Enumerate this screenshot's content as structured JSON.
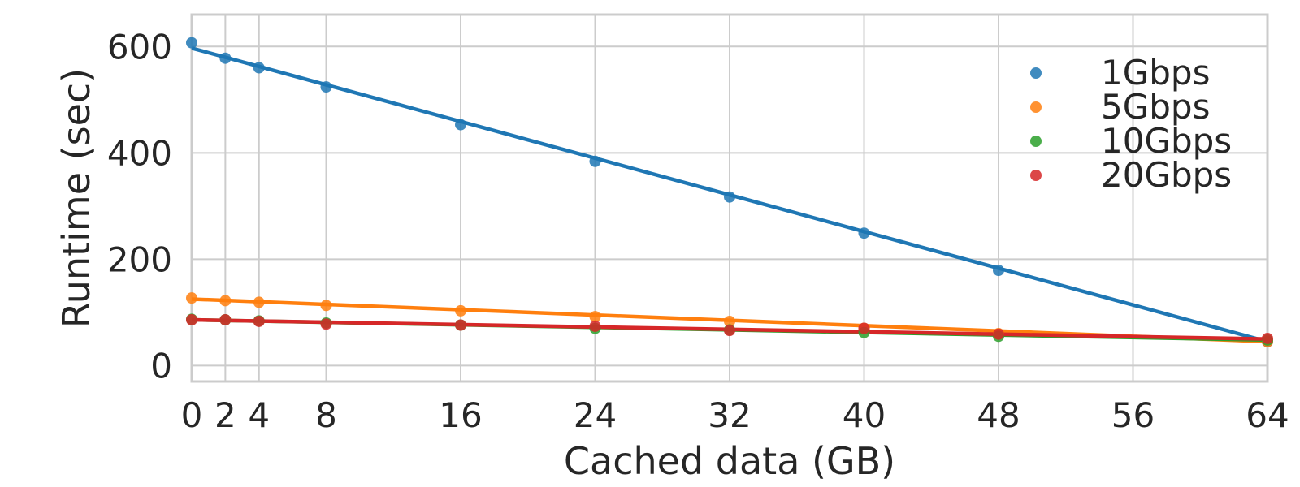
{
  "chart_data": {
    "type": "scatter",
    "xlabel": "Cached data (GB)",
    "ylabel": "Runtime (sec)",
    "xlim": [
      0,
      64
    ],
    "ylim": [
      -30,
      660
    ],
    "x_ticks": [
      0,
      2,
      4,
      8,
      16,
      24,
      32,
      40,
      48,
      56,
      64
    ],
    "y_ticks": [
      0,
      200,
      400,
      600
    ],
    "grid": true,
    "legend_position": "top-right",
    "x": [
      0,
      2,
      4,
      8,
      16,
      24,
      32,
      40,
      48,
      64
    ],
    "series": [
      {
        "name": "1Gbps",
        "color": "#1f77b4",
        "values": [
          607,
          578,
          560,
          524,
          453,
          384,
          317,
          249,
          179,
          45
        ],
        "fit_line": [
          597,
          45
        ]
      },
      {
        "name": "5Gbps",
        "color": "#ff7f0e",
        "values": [
          127,
          122,
          119,
          113,
          103,
          92,
          83,
          70,
          60,
          45
        ],
        "fit_line": [
          125,
          45
        ]
      },
      {
        "name": "10Gbps",
        "color": "#2ca02c",
        "values": [
          87,
          86,
          84,
          80,
          76,
          70,
          67,
          62,
          55,
          48
        ],
        "fit_line": [
          86,
          48
        ]
      },
      {
        "name": "20Gbps",
        "color": "#d62728",
        "values": [
          86,
          86,
          83,
          78,
          76,
          74,
          66,
          70,
          59,
          51
        ],
        "fit_line": [
          86,
          50
        ]
      }
    ]
  }
}
